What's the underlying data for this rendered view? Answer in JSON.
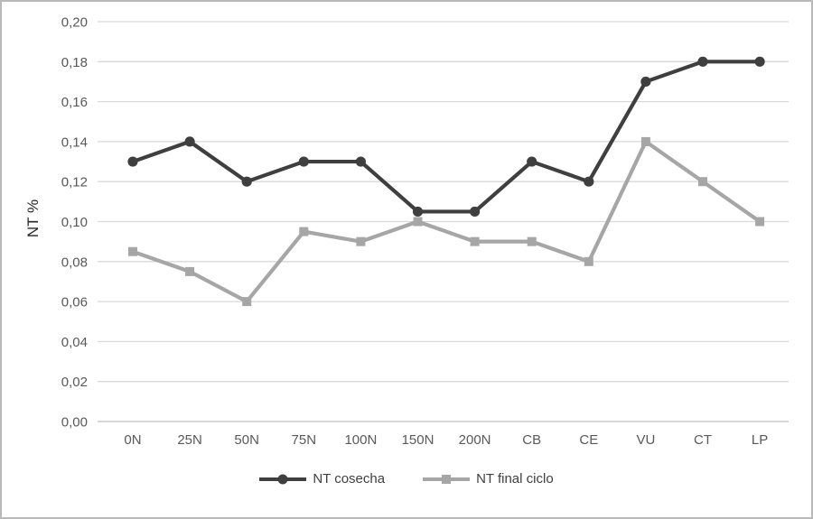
{
  "chart_data": {
    "type": "line",
    "title": "",
    "xlabel": "",
    "ylabel": "NT %",
    "categories": [
      "0N",
      "25N",
      "50N",
      "75N",
      "100N",
      "150N",
      "200N",
      "CB",
      "CE",
      "VU",
      "CT",
      "LP"
    ],
    "series": [
      {
        "name": "NT cosecha",
        "marker": "circle",
        "color": "#3f3f3f",
        "values": [
          0.13,
          0.14,
          0.12,
          0.13,
          0.13,
          0.105,
          0.105,
          0.13,
          0.12,
          0.17,
          0.18,
          0.18
        ]
      },
      {
        "name": "NT final ciclo",
        "marker": "square",
        "color": "#a6a6a6",
        "values": [
          0.085,
          0.075,
          0.06,
          0.095,
          0.09,
          0.1,
          0.09,
          0.09,
          0.08,
          0.14,
          0.12,
          0.1
        ]
      }
    ],
    "ylim": [
      0.0,
      0.2
    ],
    "ytick_step": 0.02,
    "ytick_labels": [
      "0,00",
      "0,02",
      "0,04",
      "0,06",
      "0,08",
      "0,10",
      "0,12",
      "0,14",
      "0,16",
      "0,18",
      "0,20"
    ],
    "grid": true,
    "legend_position": "bottom",
    "colors": {
      "gridline": "#d9d9d9",
      "axis_line": "#bfbfbf",
      "tick_text": "#595959",
      "axis_title_text": "#262626",
      "background": "#ffffff",
      "border": "#b9b9b9"
    }
  }
}
